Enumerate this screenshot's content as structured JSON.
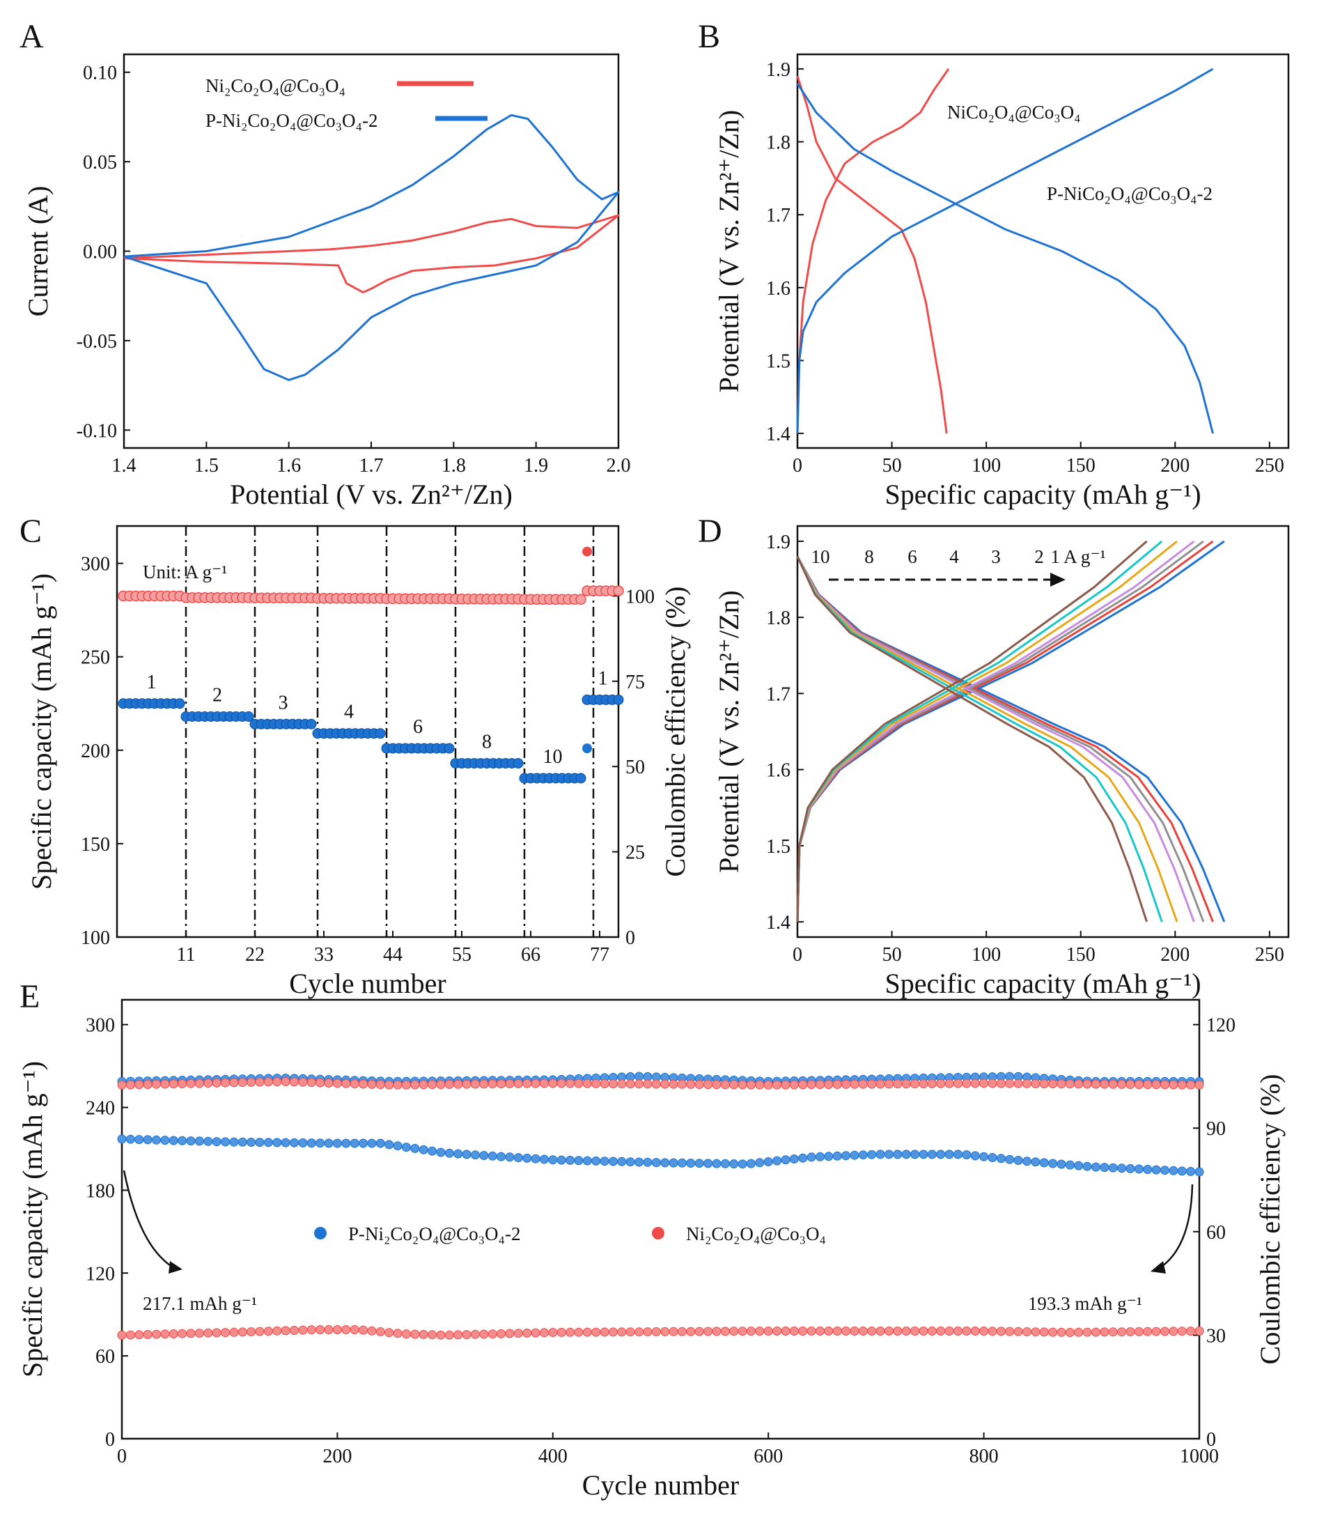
{
  "figure": {
    "panels": [
      "A",
      "B",
      "C",
      "D",
      "E"
    ]
  },
  "colors": {
    "red": "#f04b4b",
    "blue": "#1e73d2",
    "black": "#111111"
  },
  "chart_data": [
    {
      "id": "A",
      "type": "line",
      "title": "",
      "xlabel": "Potential (V vs. Zn²⁺/Zn)",
      "ylabel": "Current (A)",
      "xlim": [
        1.4,
        2.0
      ],
      "ylim": [
        -0.11,
        0.11
      ],
      "xticks": [
        1.4,
        1.5,
        1.6,
        1.7,
        1.8,
        1.9,
        2.0
      ],
      "xtick_labels": [
        "1.4",
        "1.5",
        "1.6",
        "1.7",
        "1.8",
        "1.9",
        "2.0"
      ],
      "yticks": [
        -0.1,
        -0.05,
        0.0,
        0.05,
        0.1
      ],
      "ytick_labels": [
        "-0.10",
        "-0.05",
        "0.00",
        "0.05",
        "0.10"
      ],
      "legend": [
        "Ni₂Co₂O₄@Co₃O₄",
        "P-Ni₂Co₂O₄@Co₃O₄-2"
      ],
      "series": [
        {
          "name": "Ni₂Co₂O₄@Co₃O₄",
          "color": "#f04b4b",
          "x": [
            1.4,
            1.5,
            1.6,
            1.65,
            1.7,
            1.75,
            1.8,
            1.84,
            1.87,
            1.9,
            1.95,
            2.0,
            1.95,
            1.9,
            1.85,
            1.8,
            1.75,
            1.72,
            1.7,
            1.69,
            1.67,
            1.66,
            1.6,
            1.5,
            1.4
          ],
          "y": [
            -0.004,
            -0.002,
            0.0,
            0.001,
            0.003,
            0.006,
            0.011,
            0.016,
            0.018,
            0.014,
            0.013,
            0.02,
            0.002,
            -0.004,
            -0.008,
            -0.009,
            -0.011,
            -0.016,
            -0.021,
            -0.023,
            -0.018,
            -0.008,
            -0.007,
            -0.006,
            -0.004
          ]
        },
        {
          "name": "P-Ni₂Co₂O₄@Co₃O₄-2",
          "color": "#1e73d2",
          "x": [
            1.4,
            1.5,
            1.6,
            1.7,
            1.75,
            1.8,
            1.84,
            1.87,
            1.89,
            1.92,
            1.95,
            1.98,
            2.0,
            1.95,
            1.9,
            1.85,
            1.8,
            1.75,
            1.7,
            1.66,
            1.62,
            1.6,
            1.57,
            1.54,
            1.5,
            1.4
          ],
          "y": [
            -0.003,
            0.0,
            0.008,
            0.025,
            0.037,
            0.053,
            0.068,
            0.076,
            0.074,
            0.058,
            0.04,
            0.029,
            0.033,
            0.005,
            -0.008,
            -0.013,
            -0.018,
            -0.025,
            -0.037,
            -0.055,
            -0.069,
            -0.072,
            -0.066,
            -0.045,
            -0.018,
            -0.003
          ]
        }
      ]
    },
    {
      "id": "B",
      "type": "line",
      "title": "",
      "xlabel": "Specific capacity (mAh g⁻¹)",
      "ylabel": "Potential (V vs. Zn²⁺/Zn)",
      "xlim": [
        0,
        260
      ],
      "ylim": [
        1.38,
        1.92
      ],
      "xticks": [
        0,
        50,
        100,
        150,
        200,
        250
      ],
      "xtick_labels": [
        "0",
        "50",
        "100",
        "150",
        "200",
        "250"
      ],
      "yticks": [
        1.4,
        1.5,
        1.6,
        1.7,
        1.8,
        1.9
      ],
      "ytick_labels": [
        "1.4",
        "1.5",
        "1.6",
        "1.7",
        "1.8",
        "1.9"
      ],
      "annotations": [
        "NiCo₂O₄@Co₃O₄",
        "P-NiCo₂O₄@Co₃O₄-2"
      ],
      "series": [
        {
          "name": "NiCo₂O₄@Co₃O₄ charge",
          "color": "#f04b4b",
          "x": [
            0,
            1,
            3,
            8,
            15,
            25,
            40,
            55,
            65,
            72,
            80
          ],
          "y": [
            1.4,
            1.5,
            1.58,
            1.66,
            1.72,
            1.77,
            1.8,
            1.82,
            1.84,
            1.87,
            1.9
          ]
        },
        {
          "name": "NiCo₂O₄@Co₃O₄ discharge",
          "color": "#f04b4b",
          "x": [
            0,
            5,
            10,
            20,
            30,
            45,
            55,
            62,
            68,
            72,
            76,
            79
          ],
          "y": [
            1.89,
            1.85,
            1.8,
            1.75,
            1.73,
            1.7,
            1.68,
            1.64,
            1.58,
            1.52,
            1.46,
            1.4
          ]
        },
        {
          "name": "P-NiCo₂O₄@Co₃O₄-2 charge",
          "color": "#1e73d2",
          "x": [
            0,
            1,
            3,
            10,
            25,
            50,
            80,
            110,
            140,
            170,
            200,
            220
          ],
          "y": [
            1.4,
            1.5,
            1.54,
            1.58,
            1.62,
            1.67,
            1.71,
            1.75,
            1.79,
            1.83,
            1.87,
            1.9
          ]
        },
        {
          "name": "P-NiCo₂O₄@Co₃O₄-2 discharge",
          "color": "#1e73d2",
          "x": [
            0,
            10,
            30,
            50,
            80,
            110,
            140,
            170,
            190,
            205,
            213,
            218,
            220
          ],
          "y": [
            1.88,
            1.84,
            1.79,
            1.76,
            1.72,
            1.68,
            1.65,
            1.61,
            1.57,
            1.52,
            1.47,
            1.42,
            1.4
          ]
        }
      ]
    },
    {
      "id": "C",
      "type": "scatter",
      "title": "",
      "xlabel": "Cycle number",
      "ylabel": "Specific capacity (mAh g⁻¹)",
      "y2label": "Coulombic efficiency (%)",
      "xlim": [
        0,
        80
      ],
      "ylim": [
        100,
        320
      ],
      "y2lim": [
        0,
        120.5
      ],
      "xticks": [
        11,
        22,
        33,
        44,
        55,
        66,
        77
      ],
      "xtick_labels": [
        "11",
        "22",
        "33",
        "44",
        "55",
        "66",
        "77"
      ],
      "yticks": [
        100,
        150,
        200,
        250,
        300
      ],
      "ytick_labels": [
        "100",
        "150",
        "200",
        "250",
        "300"
      ],
      "y2ticks": [
        0,
        25,
        50,
        75,
        100
      ],
      "y2tick_labels": [
        "0",
        "25",
        "50",
        "75",
        "100"
      ],
      "dividers": [
        11,
        22,
        32,
        43,
        54,
        65,
        76
      ],
      "unit_label": "Unit: A g⁻¹",
      "rate_labels": [
        "1",
        "2",
        "3",
        "4",
        "6",
        "8",
        "10",
        "1"
      ],
      "rate_segments": [
        [
          1,
          10
        ],
        [
          11,
          21
        ],
        [
          22,
          31
        ],
        [
          32,
          42
        ],
        [
          43,
          53
        ],
        [
          54,
          64
        ],
        [
          65,
          74
        ],
        [
          75,
          80
        ]
      ],
      "capacity_levels": [
        225,
        218,
        214,
        209,
        201,
        193,
        185,
        227
      ],
      "ce_levels": [
        100,
        99.5,
        99.4,
        99.3,
        99.2,
        99.1,
        99.0,
        101.5
      ],
      "outliers": {
        "capacity": [
          75,
          201
        ],
        "ce": [
          75,
          113
        ]
      },
      "series_colors": {
        "capacity": "#1e73d2",
        "ce": "#f04b4b"
      }
    },
    {
      "id": "D",
      "type": "line",
      "title": "",
      "xlabel": "Specific capacity (mAh g⁻¹)",
      "ylabel": "Potential (V vs. Zn²⁺/Zn)",
      "xlim": [
        0,
        260
      ],
      "ylim": [
        1.38,
        1.92
      ],
      "xticks": [
        0,
        50,
        100,
        150,
        200,
        250
      ],
      "xtick_labels": [
        "0",
        "50",
        "100",
        "150",
        "200",
        "250"
      ],
      "yticks": [
        1.4,
        1.5,
        1.6,
        1.7,
        1.8,
        1.9
      ],
      "ytick_labels": [
        "1.4",
        "1.5",
        "1.6",
        "1.7",
        "1.8",
        "1.9"
      ],
      "current_labels": [
        "10",
        "8",
        "6",
        "4",
        "3",
        "2",
        "1 A g⁻¹"
      ],
      "series": [
        {
          "name": "1 A g⁻¹",
          "color": "#1e73d2",
          "capacity": 226
        },
        {
          "name": "2 A g⁻¹",
          "color": "#e8403a",
          "capacity": 220
        },
        {
          "name": "3 A g⁻¹",
          "color": "#8f8f8f",
          "capacity": 215
        },
        {
          "name": "4 A g⁻¹",
          "color": "#c78be0",
          "capacity": 210
        },
        {
          "name": "6 A g⁻¹",
          "color": "#e6a817",
          "capacity": 201
        },
        {
          "name": "8 A g⁻¹",
          "color": "#18c8c8",
          "capacity": 193
        },
        {
          "name": "10 A g⁻¹",
          "color": "#8b5a4a",
          "capacity": 185
        }
      ],
      "curve_shape": {
        "charge_frac": [
          0,
          0.005,
          0.03,
          0.1,
          0.25,
          0.4,
          0.55,
          0.7,
          0.85,
          1.0
        ],
        "charge_v": [
          1.4,
          1.5,
          1.55,
          1.6,
          1.66,
          1.7,
          1.74,
          1.79,
          1.84,
          1.9
        ],
        "discharge_frac": [
          0,
          0.05,
          0.15,
          0.3,
          0.45,
          0.6,
          0.72,
          0.82,
          0.9,
          0.95,
          1.0
        ],
        "discharge_v": [
          1.88,
          1.83,
          1.78,
          1.74,
          1.7,
          1.66,
          1.63,
          1.59,
          1.53,
          1.47,
          1.4
        ]
      }
    },
    {
      "id": "E",
      "type": "scatter",
      "title": "",
      "xlabel": "Cycle number",
      "ylabel": "Specific capacity (mAh g⁻¹)",
      "y2label": "Coulombic efficiency (%)",
      "xlim": [
        0,
        1000
      ],
      "ylim": [
        0,
        318
      ],
      "y2lim": [
        0,
        127.2
      ],
      "xticks": [
        0,
        200,
        400,
        600,
        800,
        1000
      ],
      "xtick_labels": [
        "0",
        "200",
        "400",
        "600",
        "800",
        "1000"
      ],
      "yticks": [
        0,
        60,
        120,
        180,
        240,
        300
      ],
      "ytick_labels": [
        "0",
        "60",
        "120",
        "180",
        "240",
        "300"
      ],
      "y2ticks": [
        0,
        30,
        60,
        90,
        120
      ],
      "y2tick_labels": [
        "0",
        "30",
        "60",
        "90",
        "120"
      ],
      "legend": [
        "P-Ni₂Co₂O₄@Co₃O₄-2",
        "Ni₂Co₂O₄@Co₃O₄"
      ],
      "annotations": [
        "217.1 mAh g⁻¹",
        "193.3 mAh g⁻¹"
      ],
      "series": [
        {
          "name": "P-Ni₂Co₂O₄@Co₃O₄-2 capacity",
          "color": "#1e73d2",
          "axis": "left",
          "x": [
            0,
            50,
            100,
            150,
            200,
            240,
            300,
            400,
            500,
            580,
            640,
            700,
            780,
            840,
            900,
            1000
          ],
          "y": [
            217.1,
            216,
            215,
            214.5,
            214,
            214,
            207,
            202,
            200,
            199,
            204,
            206,
            206,
            201,
            197,
            193.3
          ]
        },
        {
          "name": "P-Ni₂Co₂O₄@Co₃O₄-2 CE",
          "color": "#1e73d2",
          "axis": "right",
          "x": [
            0,
            150,
            250,
            400,
            480,
            600,
            740,
            830,
            900,
            1000
          ],
          "y": [
            103.5,
            104.5,
            103.5,
            104,
            105,
            103.5,
            104.5,
            105,
            103.5,
            103.5
          ]
        },
        {
          "name": "Ni₂Co₂O₄@Co₃O₄ CE",
          "color": "#f04b4b",
          "axis": "right",
          "x": [
            0,
            150,
            250,
            400,
            600,
            800,
            1000
          ],
          "y": [
            102.5,
            103.5,
            102.5,
            103,
            102.5,
            103,
            102.5
          ]
        },
        {
          "name": "Ni₂Co₂O₄@Co₃O₄ capacity",
          "color": "#f04b4b",
          "axis": "left",
          "x": [
            0,
            100,
            180,
            220,
            260,
            300,
            400,
            600,
            800,
            880,
            1000
          ],
          "y": [
            75,
            77,
            79,
            79,
            76,
            75,
            77,
            78,
            78,
            77,
            78
          ]
        }
      ]
    }
  ]
}
